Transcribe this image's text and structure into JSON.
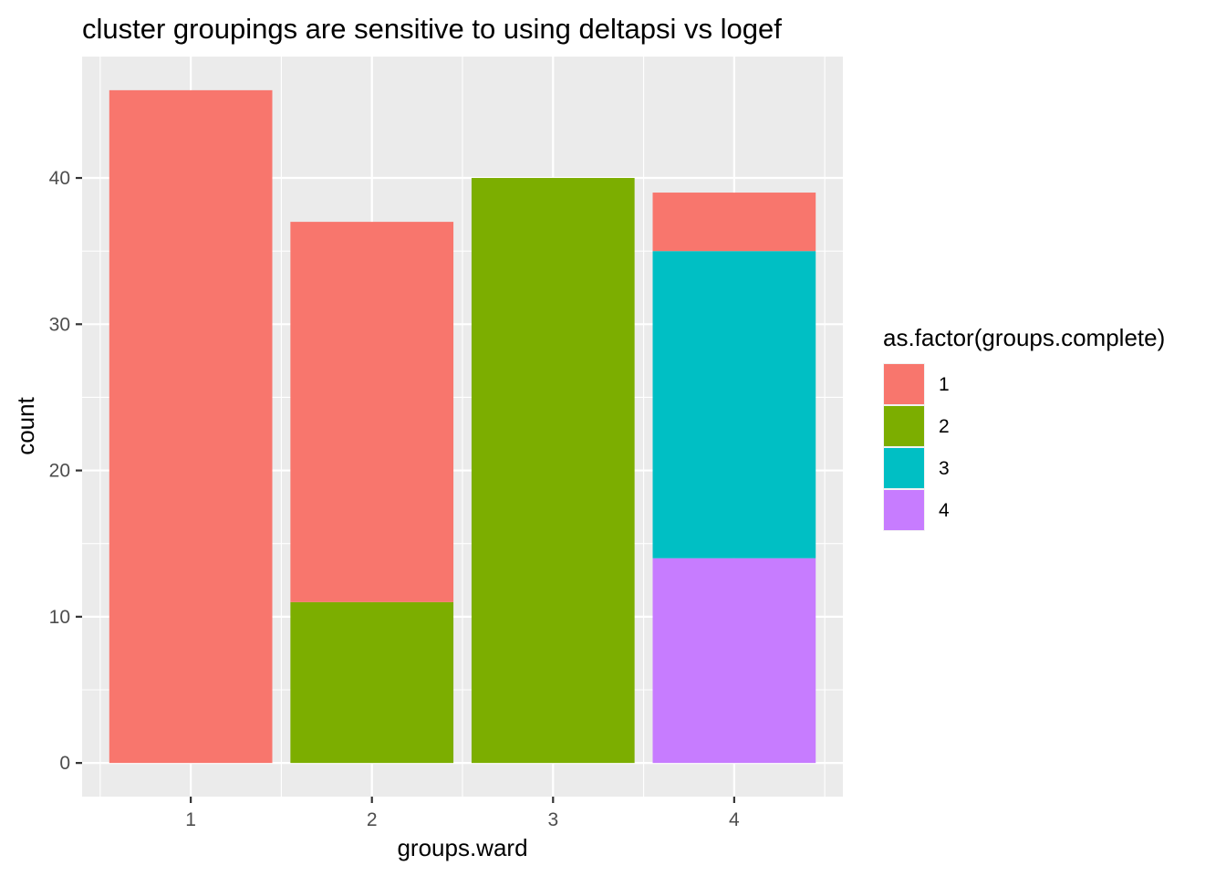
{
  "chart_data": {
    "type": "bar",
    "stacked": true,
    "title": "cluster groupings are sensitive to using deltapsi vs logef",
    "xlabel": "groups.ward",
    "ylabel": "count",
    "categories": [
      "1",
      "2",
      "3",
      "4"
    ],
    "series": [
      {
        "name": "1",
        "color": "#F8766D",
        "values": [
          46,
          26,
          0,
          4
        ]
      },
      {
        "name": "2",
        "color": "#7CAE00",
        "values": [
          0,
          11,
          40,
          0
        ]
      },
      {
        "name": "3",
        "color": "#00BFC4",
        "values": [
          0,
          0,
          0,
          21
        ]
      },
      {
        "name": "4",
        "color": "#C77CFF",
        "values": [
          0,
          0,
          0,
          14
        ]
      }
    ],
    "stack_order": [
      "4",
      "3",
      "2",
      "1"
    ],
    "ylim": [
      -2.3,
      48.3
    ],
    "yticks": [
      0,
      10,
      20,
      30,
      40
    ],
    "legend": {
      "title": "as.factor(groups.complete)",
      "position": "right",
      "entries": [
        "1",
        "2",
        "3",
        "4"
      ]
    },
    "grid": true,
    "panel_background": "#EBEBEB",
    "grid_color": "#FFFFFF"
  }
}
